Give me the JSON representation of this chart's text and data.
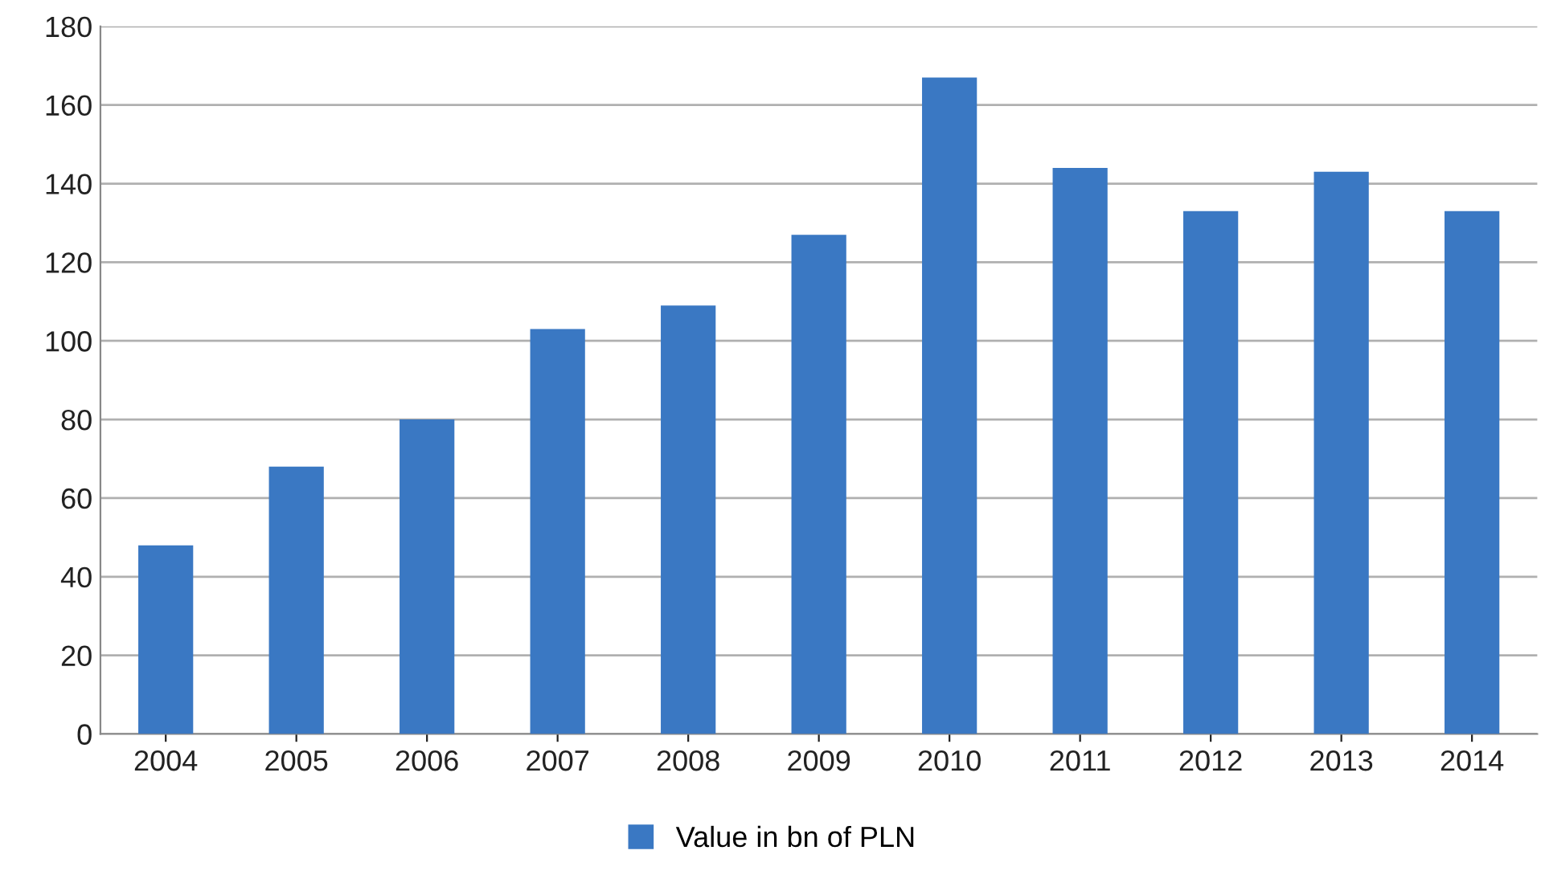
{
  "chart_data": {
    "type": "bar",
    "categories": [
      "2004",
      "2005",
      "2006",
      "2007",
      "2008",
      "2009",
      "2010",
      "2011",
      "2012",
      "2013",
      "2014"
    ],
    "series": [
      {
        "name": "Value in bn of PLN",
        "color": "#3a78c3",
        "values": [
          48,
          68,
          80,
          103,
          109,
          127,
          167,
          144,
          133,
          143,
          133
        ]
      }
    ],
    "ylim": [
      0,
      180
    ],
    "yticks": [
      0,
      20,
      40,
      60,
      80,
      100,
      120,
      140,
      160,
      180
    ],
    "grid": "y",
    "legend": "bottom"
  }
}
